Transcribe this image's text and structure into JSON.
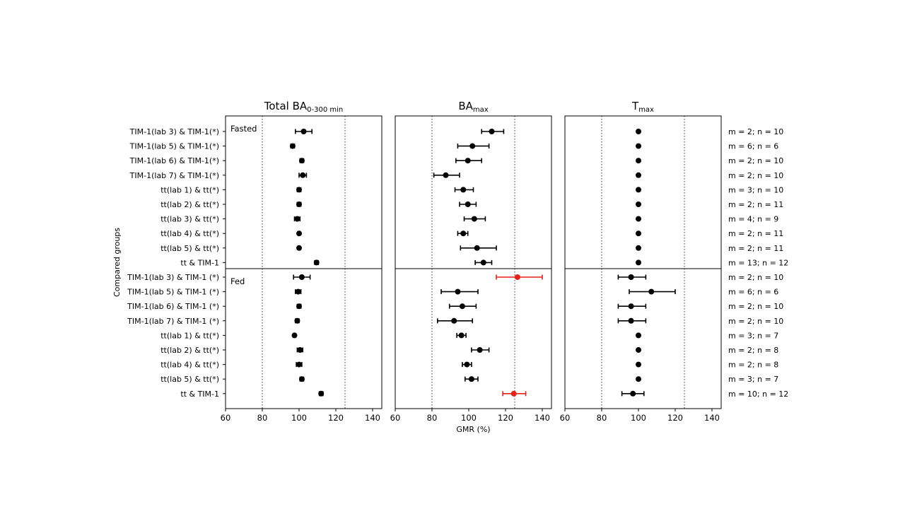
{
  "chart_data": {
    "type": "forest",
    "y_axis_label": "Compared groups",
    "x_axis_label": "GMR (%)",
    "x_ticks": [
      60,
      80,
      100,
      120,
      140
    ],
    "xlim": [
      60,
      145
    ],
    "reference_lines": [
      80,
      125
    ],
    "groups": [
      {
        "label": "Fasted",
        "rows": [
          {
            "label": "TIM-1(lab 3) & TIM-1(*)",
            "stats": "m = 2; n = 10"
          },
          {
            "label": "TIM-1(lab 5) & TIM-1(*)",
            "stats": "m = 6; n = 6"
          },
          {
            "label": "TIM-1(lab 6) & TIM-1(*)",
            "stats": "m = 2; n = 10"
          },
          {
            "label": "TIM-1(lab 7) & TIM-1(*)",
            "stats": "m = 2; n = 10"
          },
          {
            "label": "tt(lab 1) & tt(*)",
            "stats": "m = 3; n = 10"
          },
          {
            "label": "tt(lab 2) & tt(*)",
            "stats": "m = 2; n = 11"
          },
          {
            "label": "tt(lab 3) & tt(*)",
            "stats": "m = 4; n = 9"
          },
          {
            "label": "tt(lab 4) & tt(*)",
            "stats": "m = 2; n = 11"
          },
          {
            "label": "tt(lab 5) & tt(*)",
            "stats": "m = 2; n = 11"
          },
          {
            "label": "tt & TIM-1",
            "stats": "m = 13; n = 12"
          }
        ]
      },
      {
        "label": "Fed",
        "rows": [
          {
            "label": "TIM-1(lab 3) & TIM-1 (*)",
            "stats": "m = 2; n = 10"
          },
          {
            "label": "TIM-1(lab 5) & TIM-1 (*)",
            "stats": "m = 6; n = 6"
          },
          {
            "label": "TIM-1(lab 6) & TIM-1 (*)",
            "stats": "m = 2; n = 10"
          },
          {
            "label": "TIM-1(lab 7) & TIM-1 (*)",
            "stats": "m = 2; n = 10"
          },
          {
            "label": "tt(lab 1) & tt(*)",
            "stats": "m = 3; n = 7"
          },
          {
            "label": "tt(lab 2) & tt(*)",
            "stats": "m = 2; n = 8"
          },
          {
            "label": "tt(lab 4) & tt(*)",
            "stats": "m = 2; n = 8"
          },
          {
            "label": "tt(lab 5) & tt(*)",
            "stats": "m = 3; n = 7"
          },
          {
            "label": "tt & TIM-1",
            "stats": "m = 10; n = 12"
          }
        ]
      }
    ],
    "panels": [
      {
        "title_main": "Total BA",
        "title_sub": "0-300 min",
        "estimates": [
          [
            102.5,
            98,
            107
          ],
          [
            96.5,
            95.5,
            97.5
          ],
          [
            101.5,
            100.5,
            102.5
          ],
          [
            102,
            100,
            104
          ],
          [
            100,
            99,
            101
          ],
          [
            100,
            99,
            101
          ],
          [
            99,
            97.5,
            100.5
          ],
          [
            100,
            99.5,
            100.5
          ],
          [
            100,
            99.5,
            100.5
          ],
          [
            109.5,
            108.5,
            110.5
          ],
          [
            101.5,
            97,
            106
          ],
          [
            99.5,
            98,
            101
          ],
          [
            100,
            99,
            101
          ],
          [
            99,
            98,
            100
          ],
          [
            97.5,
            97,
            98
          ],
          [
            100.5,
            99,
            102
          ],
          [
            100,
            98.5,
            101.5
          ],
          [
            101.5,
            100.5,
            102.5
          ],
          [
            112,
            111,
            113
          ]
        ],
        "highlight_rows": []
      },
      {
        "title_main": "BA",
        "title_sub": "max",
        "estimates": [
          [
            112.5,
            107,
            119
          ],
          [
            102,
            94,
            111
          ],
          [
            99.5,
            93,
            107
          ],
          [
            87.5,
            81,
            95
          ],
          [
            97,
            92.5,
            102.5
          ],
          [
            99.5,
            95,
            104
          ],
          [
            103,
            97.5,
            109
          ],
          [
            97,
            94,
            99.5
          ],
          [
            104.5,
            95.5,
            115
          ],
          [
            108,
            103.5,
            112.5
          ],
          [
            126.5,
            115,
            140
          ],
          [
            94,
            85,
            105
          ],
          [
            96.5,
            89.5,
            104
          ],
          [
            92,
            83,
            102
          ],
          [
            96,
            93.5,
            98.5
          ],
          [
            106,
            101.5,
            111
          ],
          [
            99,
            96.5,
            101.5
          ],
          [
            101.5,
            98,
            105
          ],
          [
            124.5,
            118.5,
            131
          ]
        ],
        "highlight_rows": [
          10,
          18
        ]
      },
      {
        "title_main": "T",
        "title_sub": "max",
        "estimates": [
          [
            100,
            100,
            100
          ],
          [
            100,
            100,
            100
          ],
          [
            100,
            100,
            100
          ],
          [
            100,
            100,
            100
          ],
          [
            100,
            100,
            100
          ],
          [
            100,
            100,
            100
          ],
          [
            100,
            100,
            100
          ],
          [
            100,
            100,
            100
          ],
          [
            100,
            100,
            100
          ],
          [
            100,
            100,
            100
          ],
          [
            96,
            89,
            104
          ],
          [
            107,
            95,
            120
          ],
          [
            96,
            89,
            104
          ],
          [
            96,
            89,
            104
          ],
          [
            100,
            100,
            100
          ],
          [
            100,
            100,
            100
          ],
          [
            100,
            100,
            100
          ],
          [
            100,
            100,
            100
          ],
          [
            97,
            91,
            103
          ]
        ],
        "highlight_rows": []
      }
    ],
    "colors": {
      "default": "#000000",
      "highlight": "#e8201a"
    }
  }
}
